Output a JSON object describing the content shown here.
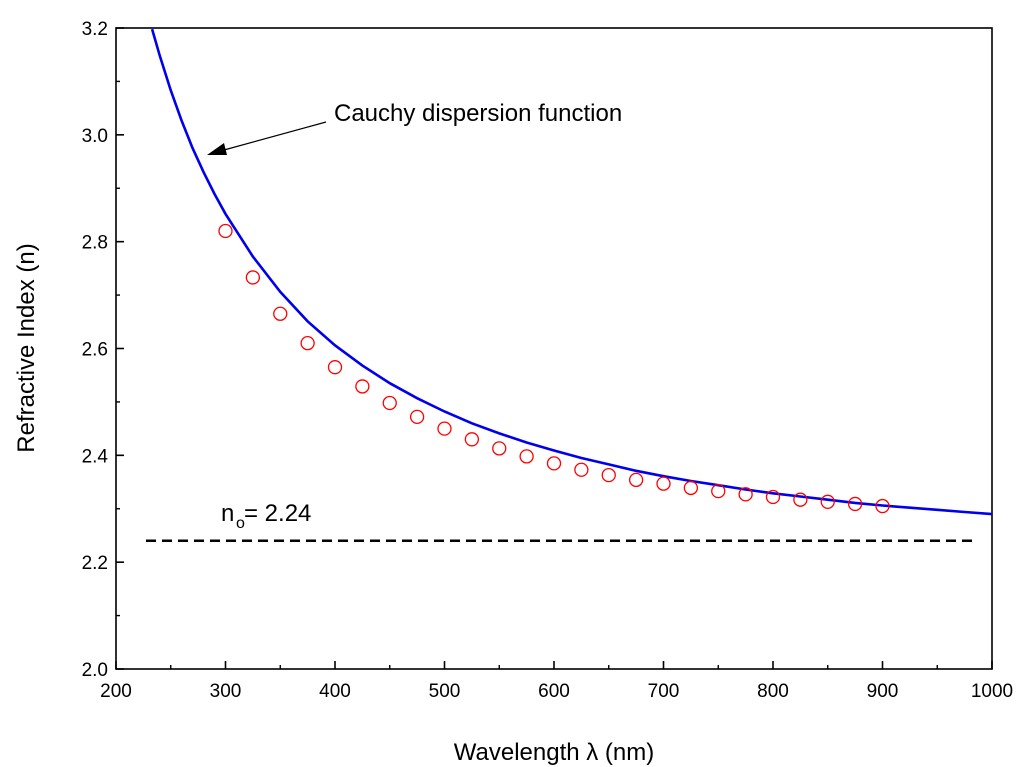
{
  "chart_data": {
    "type": "scatter",
    "xlabel": "Wavelength λ (nm)",
    "ylabel": "Refractive Index (n)",
    "xlim": [
      200,
      1000
    ],
    "ylim": [
      2.0,
      3.2
    ],
    "x_ticks": [
      "200",
      "300",
      "400",
      "500",
      "600",
      "700",
      "800",
      "900",
      "1000"
    ],
    "y_ticks": [
      "2.0",
      "2.2",
      "2.4",
      "2.6",
      "2.8",
      "3.0",
      "3.2"
    ],
    "grid": false,
    "legend": "none",
    "series": [
      {
        "kind": "markers",
        "marker": "open-circle",
        "color": "#ff0000",
        "x": [
          300,
          325,
          350,
          375,
          400,
          425,
          450,
          475,
          500,
          525,
          550,
          575,
          600,
          625,
          650,
          675,
          700,
          725,
          750,
          775,
          800,
          825,
          850,
          875,
          900
        ],
        "y": [
          2.82,
          2.733,
          2.665,
          2.61,
          2.565,
          2.529,
          2.498,
          2.472,
          2.45,
          2.43,
          2.413,
          2.398,
          2.385,
          2.373,
          2.363,
          2.354,
          2.347,
          2.339,
          2.333,
          2.327,
          2.322,
          2.317,
          2.313,
          2.309,
          2.305
        ]
      },
      {
        "kind": "curve",
        "color": "#0000ee",
        "x": [
          233,
          240,
          250,
          260,
          270,
          280,
          290,
          300,
          325,
          350,
          375,
          400,
          425,
          450,
          475,
          500,
          525,
          550,
          575,
          600,
          625,
          650,
          675,
          700,
          725,
          750,
          775,
          800,
          825,
          850,
          875,
          900,
          925,
          950,
          975,
          1000
        ],
        "y": [
          3.198,
          3.148,
          3.083,
          3.026,
          2.975,
          2.93,
          2.889,
          2.852,
          2.772,
          2.706,
          2.651,
          2.606,
          2.568,
          2.535,
          2.507,
          2.482,
          2.46,
          2.441,
          2.424,
          2.409,
          2.395,
          2.383,
          2.371,
          2.361,
          2.352,
          2.344,
          2.336,
          2.329,
          2.323,
          2.317,
          2.311,
          2.306,
          2.302,
          2.298,
          2.294,
          2.29
        ]
      },
      {
        "kind": "dashed-line",
        "color": "#000000",
        "x": [
          200,
          1000
        ],
        "y": [
          2.24,
          2.24
        ]
      }
    ],
    "annotations": {
      "curve_label": "Cauchy dispersion function",
      "n_base": "n",
      "n_sub": "o",
      "n_value": " = 2.24"
    }
  }
}
